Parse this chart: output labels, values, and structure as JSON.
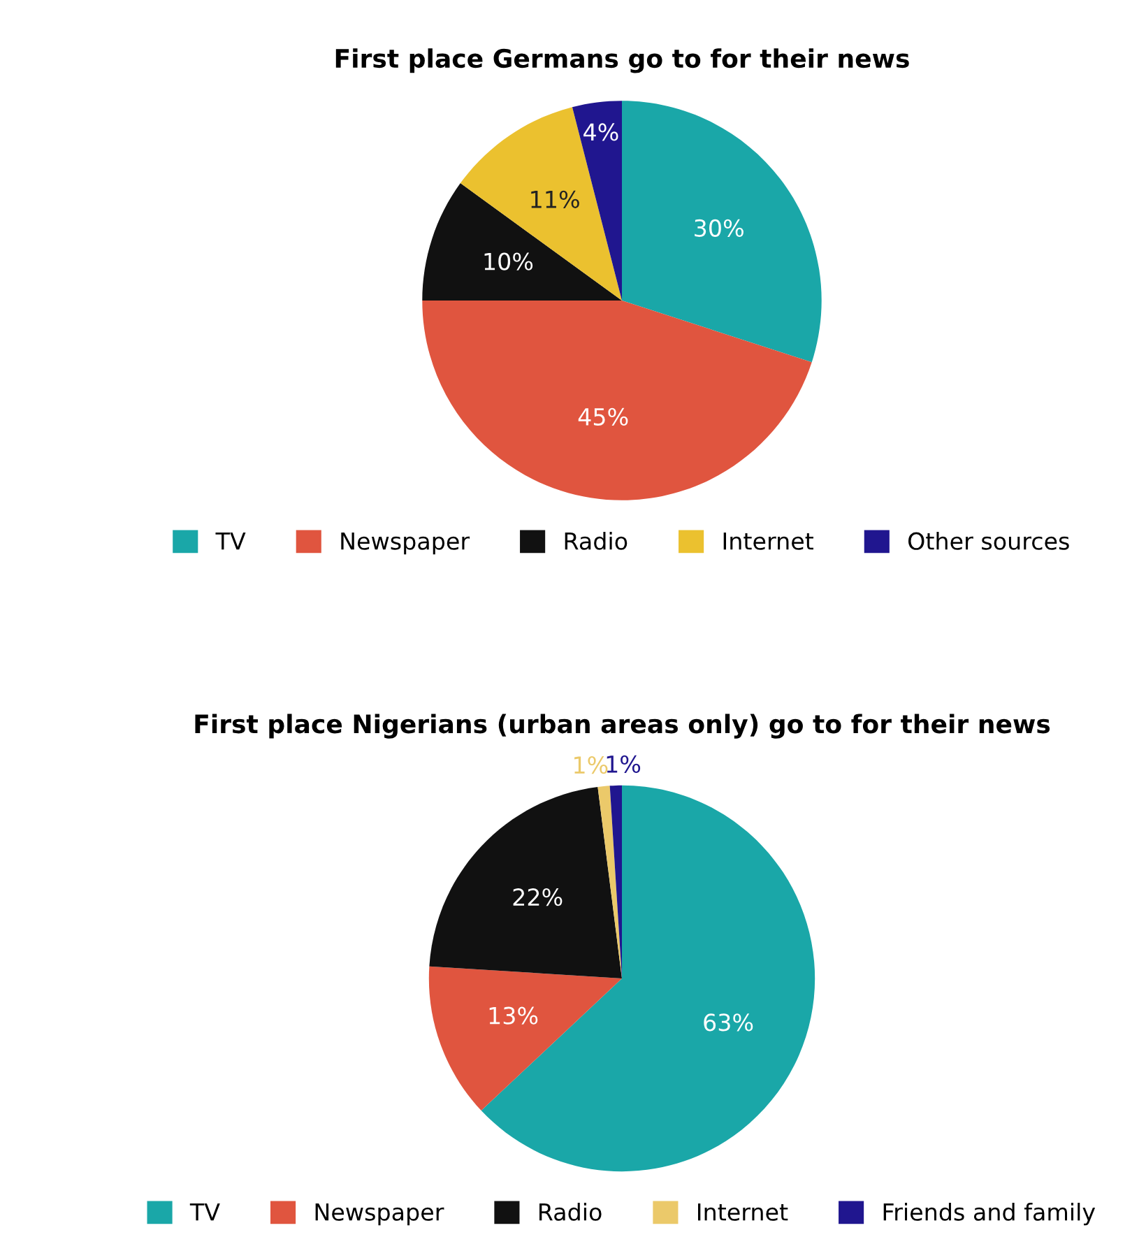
{
  "chart_data": [
    {
      "type": "pie",
      "title": "First place Germans go to for their news",
      "categories": [
        "TV",
        "Newspaper",
        "Radio",
        "Internet",
        "Other sources"
      ],
      "values": [
        30,
        45,
        10,
        11,
        4
      ],
      "colors": [
        "#1aa7a8",
        "#e0553f",
        "#111111",
        "#ebc12f",
        "#20168f"
      ],
      "value_labels": [
        "30%",
        "45%",
        "10%",
        "11%",
        "4%"
      ],
      "legend": "bottom"
    },
    {
      "type": "pie",
      "title": "First place Nigerians (urban areas only) go to for their news",
      "categories": [
        "TV",
        "Newspaper",
        "Radio",
        "Internet",
        "Friends and family"
      ],
      "values": [
        63,
        13,
        22,
        1,
        1
      ],
      "colors": [
        "#1aa7a8",
        "#e0553f",
        "#111111",
        "#ebc96a",
        "#20168f"
      ],
      "value_labels": [
        "63%",
        "13%",
        "22%",
        "1%",
        "1%"
      ],
      "legend": "bottom"
    }
  ]
}
